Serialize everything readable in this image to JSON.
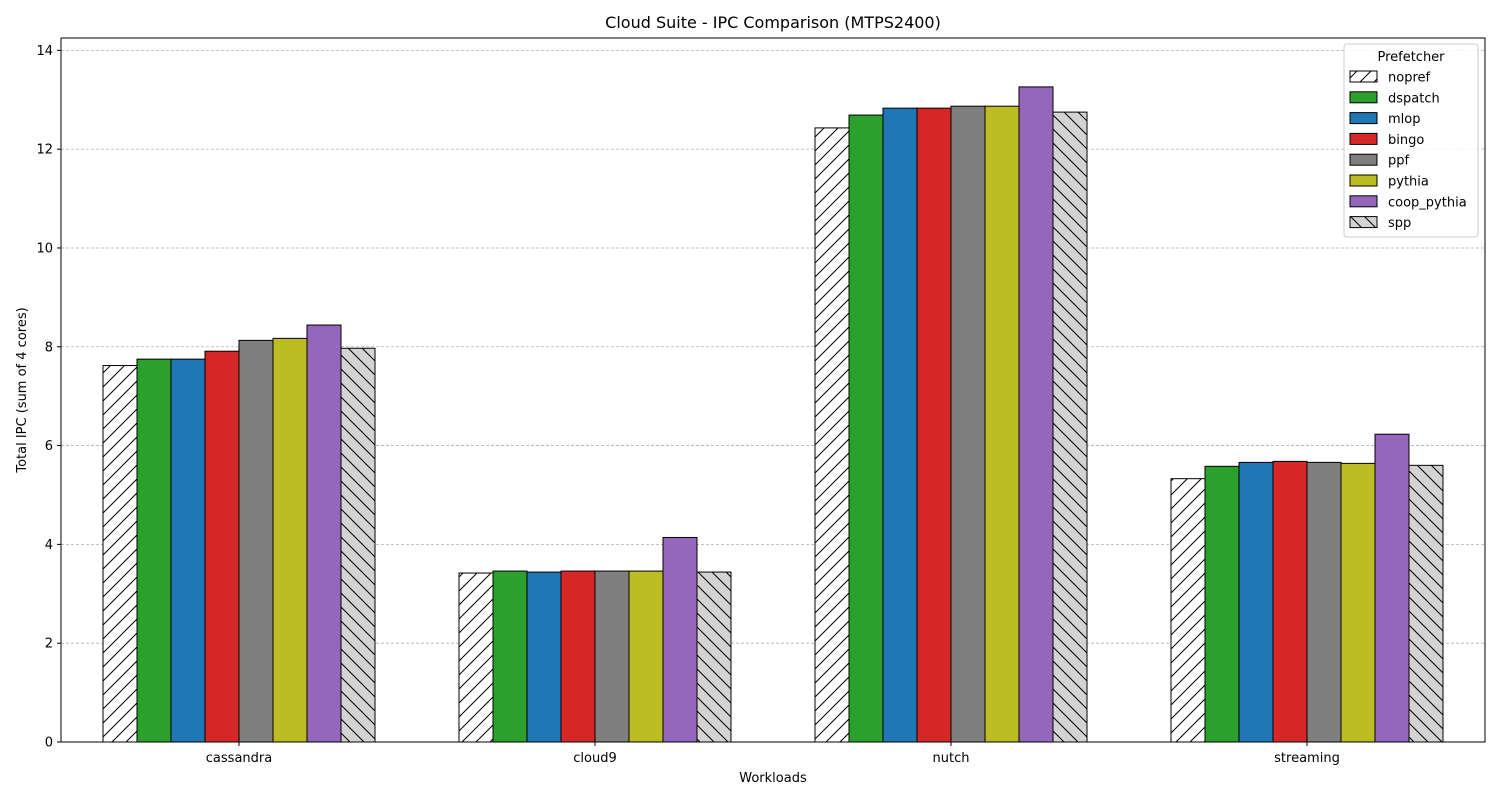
{
  "chart_data": {
    "type": "bar",
    "title": "Cloud Suite - IPC Comparison (MTPS2400)",
    "xlabel": "Workloads",
    "ylabel": "Total IPC (sum of 4 cores)",
    "ylim": [
      0,
      14.25
    ],
    "yticks": [
      0,
      2,
      4,
      6,
      8,
      10,
      12,
      14
    ],
    "grid": "y-dashed",
    "legend_title": "Prefetcher",
    "legend_position": "top-right",
    "categories": [
      "cassandra",
      "cloud9",
      "nutch",
      "streaming"
    ],
    "series": [
      {
        "name": "nopref",
        "color": "#ffffff",
        "hatch": "forward-diagonal",
        "values": [
          7.62,
          3.42,
          12.43,
          5.33
        ]
      },
      {
        "name": "dspatch",
        "color": "#2ca02c",
        "hatch": "none",
        "values": [
          7.75,
          3.46,
          12.69,
          5.58
        ]
      },
      {
        "name": "mlop",
        "color": "#1f77b4",
        "hatch": "none",
        "values": [
          7.75,
          3.44,
          12.83,
          5.66
        ]
      },
      {
        "name": "bingo",
        "color": "#d62728",
        "hatch": "none",
        "values": [
          7.91,
          3.46,
          12.83,
          5.68
        ]
      },
      {
        "name": "ppf",
        "color": "#7f7f7f",
        "hatch": "none",
        "values": [
          8.13,
          3.46,
          12.87,
          5.66
        ]
      },
      {
        "name": "pythia",
        "color": "#bcbd22",
        "hatch": "none",
        "values": [
          8.17,
          3.46,
          12.87,
          5.64
        ]
      },
      {
        "name": "coop_pythia",
        "color": "#9467bd",
        "hatch": "none",
        "values": [
          8.44,
          4.14,
          13.26,
          6.23
        ]
      },
      {
        "name": "spp",
        "color": "#d3d3d3",
        "hatch": "back-diagonal",
        "values": [
          7.97,
          3.44,
          12.75,
          5.6
        ]
      }
    ]
  }
}
